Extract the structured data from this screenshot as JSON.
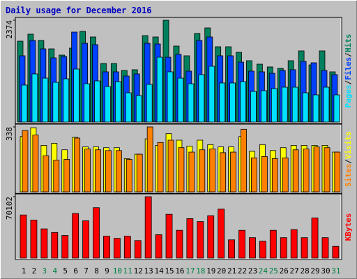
{
  "title": "Daily usage for December 2016",
  "chart_data": [
    {
      "type": "bar",
      "categories": [
        "1",
        "2",
        "3",
        "4",
        "5",
        "6",
        "7",
        "8",
        "9",
        "10",
        "11",
        "12",
        "13",
        "14",
        "15",
        "16",
        "17",
        "18",
        "19",
        "20",
        "21",
        "22",
        "23",
        "24",
        "25",
        "26",
        "27",
        "28",
        "29",
        "30",
        "31"
      ],
      "highlight_categories": [
        "3",
        "4",
        "10",
        "11",
        "17",
        "18",
        "24",
        "25",
        "31"
      ],
      "highlight_color": "#008040",
      "ylim": [
        0,
        2374
      ],
      "yticks": [
        2374
      ],
      "legend_separator": "/",
      "series": [
        {
          "name": "Hits",
          "color": "#00805c",
          "values": [
            1886,
            2049,
            1902,
            1707,
            1561,
            1724,
            2114,
            1984,
            1366,
            1366,
            1203,
            1220,
            2016,
            1984,
            2374,
            1772,
            1545,
            2065,
            2195,
            1756,
            1756,
            1626,
            1431,
            1350,
            1285,
            1252,
            1431,
            1659,
            1333,
            1659,
            1171
          ]
        },
        {
          "name": "Files",
          "color": "#0040ff",
          "values": [
            1545,
            1902,
            1707,
            1496,
            1528,
            2098,
            1837,
            1805,
            1171,
            1171,
            1073,
            1122,
            1837,
            1821,
            1512,
            1577,
            1187,
            1902,
            1984,
            1545,
            1545,
            1398,
            1187,
            1171,
            1138,
            1203,
            1220,
            1415,
            1382,
            1203,
            1106
          ]
        },
        {
          "name": "Pages",
          "color": "#00e0ff",
          "values": [
            862,
            1122,
            1024,
            927,
            1008,
            1236,
            894,
            959,
            829,
            943,
            683,
            618,
            878,
            1512,
            1171,
            1024,
            894,
            1106,
            1301,
            911,
            911,
            943,
            715,
            732,
            780,
            813,
            813,
            683,
            634,
            813,
            634
          ]
        }
      ]
    },
    {
      "type": "bar",
      "ylim": [
        0,
        338
      ],
      "yticks": [
        338
      ],
      "legend_separator": "/",
      "series": [
        {
          "name": "Visits",
          "color": "#ffff00",
          "values": [
            288,
            334,
            242,
            253,
            219,
            284,
            234,
            234,
            230,
            230,
            173,
            196,
            276,
            242,
            303,
            269,
            238,
            269,
            246,
            234,
            234,
            288,
            211,
            246,
            215,
            230,
            242,
            242,
            242,
            242,
            207
          ]
        },
        {
          "name": "Sites",
          "color": "#ff8000",
          "values": [
            319,
            296,
            188,
            165,
            169,
            280,
            223,
            219,
            215,
            215,
            169,
            196,
            338,
            257,
            269,
            230,
            207,
            219,
            223,
            204,
            207,
            326,
            177,
            184,
            173,
            177,
            219,
            223,
            234,
            230,
            207
          ]
        }
      ]
    },
    {
      "type": "bar",
      "ylim": [
        0,
        70102
      ],
      "yticks": [
        70102
      ],
      "series": [
        {
          "name": "KBytes",
          "color": "#ff0000",
          "values": [
            49236,
            43394,
            33380,
            29208,
            25870,
            50905,
            42560,
            57581,
            25035,
            22532,
            25035,
            20028,
            70102,
            26704,
            50070,
            31711,
            45063,
            41725,
            48401,
            55912,
            20862,
            31711,
            23366,
            19194,
            31711,
            23366,
            32546,
            23366,
            45898,
            23366,
            13352
          ]
        }
      ]
    }
  ]
}
